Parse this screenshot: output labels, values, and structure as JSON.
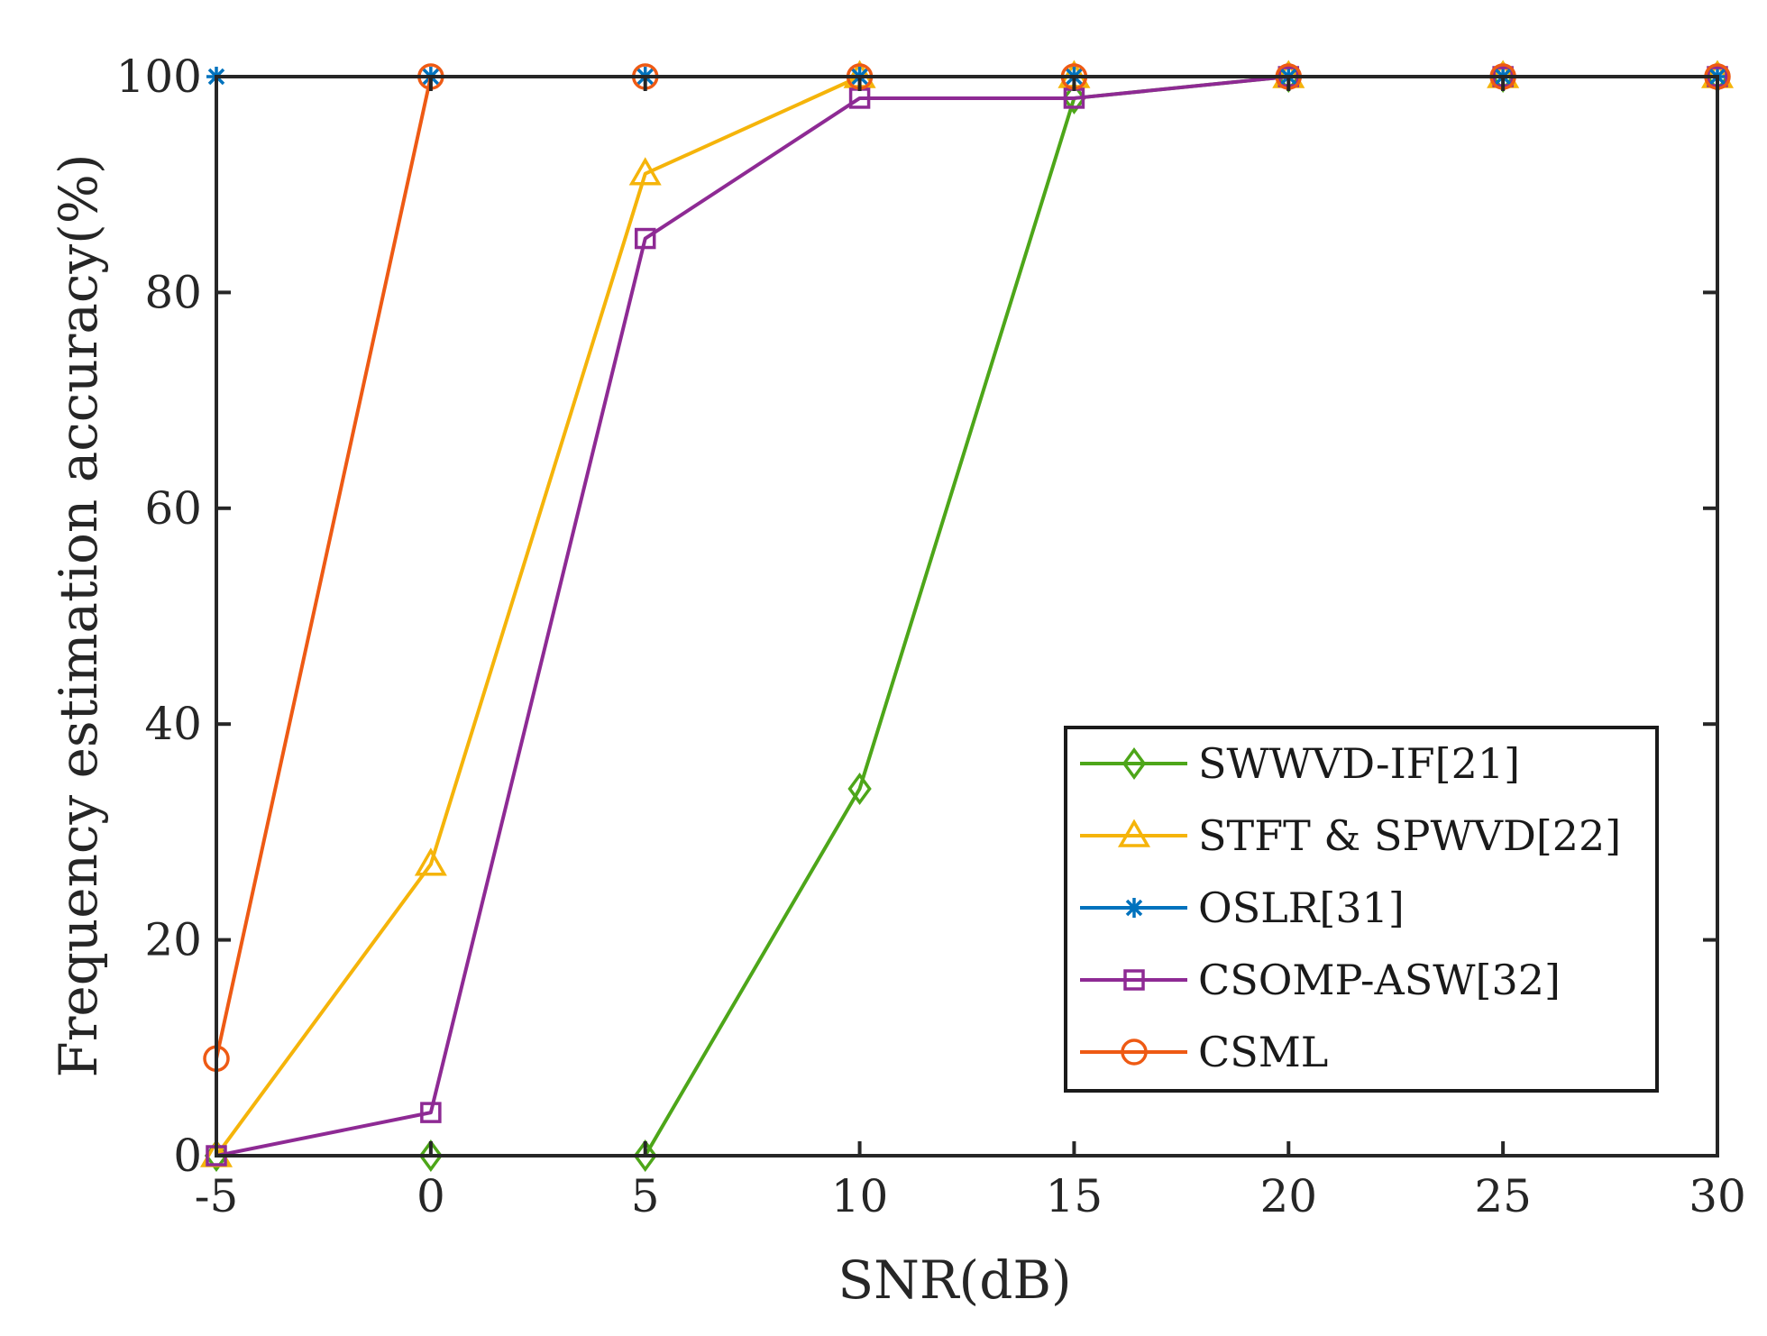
{
  "chart_data": {
    "type": "line",
    "title": "",
    "xlabel": "SNR(dB)",
    "ylabel": "Frequency estimation accuracy(%)",
    "x": [
      -5,
      0,
      5,
      10,
      15,
      20,
      25,
      30
    ],
    "xlim": [
      -5,
      30
    ],
    "ylim": [
      0,
      100
    ],
    "xticks": [
      -5,
      0,
      5,
      10,
      15,
      20,
      25,
      30
    ],
    "xtick_labels": [
      "-5",
      "0",
      "5",
      "10",
      "15",
      "20",
      "25",
      "30"
    ],
    "yticks": [
      0,
      20,
      40,
      60,
      80,
      100
    ],
    "ytick_labels": [
      "0",
      "20",
      "40",
      "60",
      "80",
      "100"
    ],
    "grid": false,
    "legend_position": "bottom-right",
    "series": [
      {
        "name": "SWWVD-IF[21]",
        "color": "#4DA619",
        "marker": "diamond",
        "values": [
          0,
          0,
          0,
          34,
          98,
          100,
          100,
          100
        ]
      },
      {
        "name": "STFT & SPWVD[22]",
        "color": "#F5B40A",
        "marker": "triangle",
        "values": [
          0,
          27,
          91,
          100,
          100,
          100,
          100,
          100
        ]
      },
      {
        "name": "OSLR[31]",
        "color": "#0072BD",
        "marker": "asterisk",
        "values": [
          100,
          100,
          100,
          100,
          100,
          100,
          100,
          100
        ]
      },
      {
        "name": "CSOMP-ASW[32]",
        "color": "#8E2A94",
        "marker": "square",
        "values": [
          0,
          4,
          85,
          98,
          98,
          100,
          100,
          100
        ]
      },
      {
        "name": "CSML",
        "color": "#EE5A14",
        "marker": "circle",
        "values": [
          9,
          100,
          100,
          100,
          100,
          100,
          100,
          100
        ]
      }
    ]
  }
}
